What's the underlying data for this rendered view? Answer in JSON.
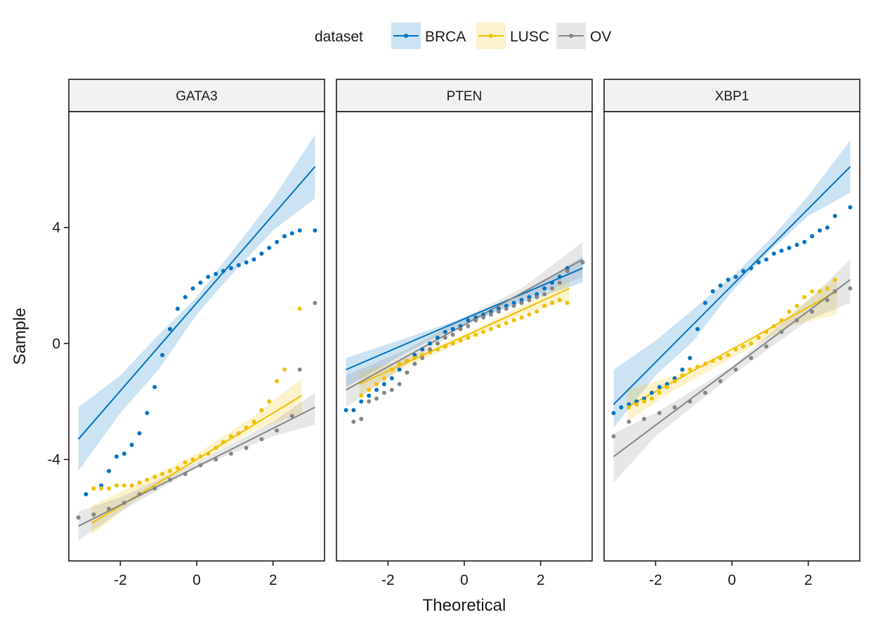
{
  "chart_data": {
    "type": "scatter",
    "xlabel": "Theoretical",
    "ylabel": "Sample",
    "xlim": [
      -3.35,
      3.35
    ],
    "ylim": [
      -7.5,
      8.0
    ],
    "x_ticks": [
      -2,
      0,
      2
    ],
    "x_tick_labels": [
      "-2",
      "0",
      "2"
    ],
    "y_ticks": [
      -4,
      0,
      4
    ],
    "y_tick_labels": [
      "-4",
      "0",
      "4"
    ],
    "grid": false,
    "legend": {
      "title": "dataset",
      "placement": "top",
      "entries": [
        "BRCA",
        "LUSC",
        "OV"
      ]
    },
    "series_colors": {
      "BRCA": "#0073C2",
      "LUSC": "#EFC000",
      "OV": "#868686"
    },
    "panels": [
      {
        "name": "GATA3",
        "series": [
          {
            "dataset": "BRCA",
            "quantile_x": [
              -3.1,
              -2.9,
              -2.7,
              -2.5,
              -2.3,
              -2.1,
              -1.9,
              -1.7,
              -1.5,
              -1.3,
              -1.1,
              -0.9,
              -0.7,
              -0.5,
              -0.3,
              -0.1,
              0.1,
              0.3,
              0.5,
              0.7,
              0.9,
              1.1,
              1.3,
              1.5,
              1.7,
              1.9,
              2.1,
              2.3,
              2.5,
              2.7,
              3.1
            ],
            "quantile_y": [
              -6.0,
              -5.2,
              -5.0,
              -4.9,
              -4.4,
              -3.9,
              -3.8,
              -3.5,
              -3.1,
              -2.4,
              -1.5,
              -0.4,
              0.5,
              1.2,
              1.6,
              1.9,
              2.1,
              2.3,
              2.4,
              2.5,
              2.6,
              2.7,
              2.8,
              2.9,
              3.1,
              3.3,
              3.5,
              3.7,
              3.8,
              3.9,
              3.9
            ],
            "fit_line": {
              "x": [
                -3.1,
                3.1
              ],
              "y": [
                -3.3,
                6.1
              ]
            },
            "band_x": [
              -3.1,
              -2.0,
              -1.0,
              0.0,
              1.0,
              2.0,
              3.1
            ],
            "band_lower": [
              -4.4,
              -2.4,
              -0.9,
              1.0,
              2.5,
              3.9,
              5.0
            ],
            "band_upper": [
              -2.2,
              -1.1,
              0.3,
              1.6,
              3.3,
              5.0,
              7.2
            ]
          },
          {
            "dataset": "LUSC",
            "quantile_x": [
              -3.1,
              -2.7,
              -2.5,
              -2.3,
              -2.1,
              -1.9,
              -1.7,
              -1.5,
              -1.3,
              -1.1,
              -0.9,
              -0.7,
              -0.5,
              -0.3,
              -0.1,
              0.1,
              0.3,
              0.5,
              0.7,
              0.9,
              1.1,
              1.3,
              1.5,
              1.7,
              1.9,
              2.1,
              2.3,
              2.7
            ],
            "quantile_y": [
              -6.0,
              -5.0,
              -5.0,
              -5.0,
              -4.9,
              -4.9,
              -4.9,
              -4.8,
              -4.7,
              -4.6,
              -4.5,
              -4.4,
              -4.3,
              -4.1,
              -4.0,
              -3.9,
              -3.8,
              -3.6,
              -3.4,
              -3.2,
              -3.1,
              -2.9,
              -2.7,
              -2.3,
              -2.0,
              -1.3,
              -0.9,
              1.2
            ],
            "fit_line": {
              "x": [
                -2.75,
                2.75
              ],
              "y": [
                -6.2,
                -1.8
              ]
            },
            "band_x": [
              -2.75,
              -1.5,
              0.0,
              1.5,
              2.75
            ],
            "band_lower": [
              -6.6,
              -5.3,
              -4.1,
              -3.0,
              -2.4
            ],
            "band_upper": [
              -5.6,
              -4.8,
              -3.8,
              -2.5,
              -1.2
            ]
          },
          {
            "dataset": "OV",
            "quantile_x": [
              -3.1,
              -2.7,
              -2.3,
              -1.9,
              -1.5,
              -1.1,
              -0.7,
              -0.3,
              0.1,
              0.5,
              0.9,
              1.3,
              1.7,
              2.1,
              2.5,
              2.7,
              3.1
            ],
            "quantile_y": [
              -6.0,
              -5.9,
              -5.7,
              -5.5,
              -5.2,
              -5.0,
              -4.7,
              -4.5,
              -4.2,
              -4.0,
              -3.8,
              -3.6,
              -3.3,
              -3.0,
              -2.5,
              -0.9,
              1.4
            ],
            "fit_line": {
              "x": [
                -3.1,
                3.1
              ],
              "y": [
                -6.3,
                -2.2
              ]
            },
            "band_x": [
              -3.1,
              -2.0,
              0.0,
              2.0,
              3.1
            ],
            "band_lower": [
              -6.8,
              -5.8,
              -4.3,
              -3.2,
              -2.8
            ],
            "band_upper": [
              -5.8,
              -5.3,
              -4.1,
              -2.7,
              -1.7
            ]
          }
        ]
      },
      {
        "name": "PTEN",
        "series": [
          {
            "dataset": "BRCA",
            "quantile_x": [
              -3.1,
              -2.9,
              -2.7,
              -2.5,
              -2.3,
              -2.1,
              -1.9,
              -1.7,
              -1.5,
              -1.3,
              -1.1,
              -0.9,
              -0.7,
              -0.5,
              -0.3,
              -0.1,
              0.1,
              0.3,
              0.5,
              0.7,
              0.9,
              1.1,
              1.3,
              1.5,
              1.7,
              1.9,
              2.1,
              2.3,
              2.5,
              2.7,
              3.1
            ],
            "quantile_y": [
              -2.3,
              -2.3,
              -2.0,
              -1.8,
              -1.6,
              -1.4,
              -1.2,
              -0.9,
              -0.6,
              -0.4,
              -0.2,
              0.0,
              0.2,
              0.4,
              0.5,
              0.6,
              0.8,
              0.9,
              1.0,
              1.1,
              1.2,
              1.3,
              1.4,
              1.5,
              1.6,
              1.7,
              1.9,
              2.1,
              2.3,
              2.6,
              2.8
            ],
            "fit_line": {
              "x": [
                -3.1,
                3.1
              ],
              "y": [
                -0.9,
                2.6
              ]
            },
            "band_x": [
              -3.1,
              -1.5,
              0.0,
              1.5,
              3.1
            ],
            "band_lower": [
              -1.5,
              -0.3,
              0.7,
              1.4,
              2.1
            ],
            "band_upper": [
              -0.5,
              0.2,
              0.9,
              1.7,
              3.0
            ]
          },
          {
            "dataset": "LUSC",
            "quantile_x": [
              -2.7,
              -2.5,
              -2.3,
              -2.1,
              -1.9,
              -1.7,
              -1.5,
              -1.3,
              -1.1,
              -0.9,
              -0.7,
              -0.5,
              -0.3,
              -0.1,
              0.1,
              0.3,
              0.5,
              0.7,
              0.9,
              1.1,
              1.3,
              1.5,
              1.7,
              1.9,
              2.1,
              2.3,
              2.5,
              2.7
            ],
            "quantile_y": [
              -1.8,
              -1.6,
              -1.4,
              -1.2,
              -0.9,
              -0.7,
              -0.6,
              -0.5,
              -0.4,
              -0.3,
              -0.2,
              -0.1,
              0.0,
              0.1,
              0.2,
              0.3,
              0.4,
              0.5,
              0.6,
              0.7,
              0.8,
              0.9,
              1.0,
              1.1,
              1.3,
              1.4,
              1.5,
              1.4
            ],
            "fit_line": {
              "x": [
                -2.75,
                2.75
              ],
              "y": [
                -1.4,
                1.9
              ]
            },
            "band_x": [
              -2.75,
              -1.5,
              0.0,
              1.5,
              2.75
            ],
            "band_lower": [
              -1.8,
              -0.8,
              0.1,
              1.0,
              1.5
            ],
            "band_upper": [
              -1.0,
              -0.5,
              0.3,
              1.3,
              2.2
            ]
          },
          {
            "dataset": "OV",
            "quantile_x": [
              -2.9,
              -2.7,
              -2.5,
              -2.3,
              -2.1,
              -1.9,
              -1.7,
              -1.5,
              -1.3,
              -1.1,
              -0.9,
              -0.7,
              -0.5,
              -0.3,
              -0.1,
              0.1,
              0.3,
              0.5,
              0.7,
              0.9,
              1.1,
              1.3,
              1.5,
              1.7,
              1.9,
              2.1,
              2.3,
              2.5,
              2.7,
              3.1
            ],
            "quantile_y": [
              -2.7,
              -2.6,
              -2.0,
              -1.9,
              -1.7,
              -1.6,
              -1.4,
              -1.0,
              -0.7,
              -0.5,
              -0.2,
              0.0,
              0.2,
              0.3,
              0.5,
              0.6,
              0.8,
              0.9,
              1.0,
              1.1,
              1.2,
              1.3,
              1.4,
              1.5,
              1.6,
              1.7,
              1.9,
              2.1,
              2.5,
              2.8
            ],
            "fit_line": {
              "x": [
                -3.1,
                3.1
              ],
              "y": [
                -1.6,
                2.9
              ]
            },
            "band_x": [
              -3.1,
              -1.5,
              0.0,
              1.5,
              3.1
            ],
            "band_lower": [
              -2.2,
              -0.7,
              0.6,
              1.5,
              2.3
            ],
            "band_upper": [
              -1.1,
              -0.2,
              0.9,
              1.9,
              3.5
            ]
          }
        ]
      },
      {
        "name": "XBP1",
        "series": [
          {
            "dataset": "BRCA",
            "quantile_x": [
              -3.1,
              -2.9,
              -2.7,
              -2.5,
              -2.3,
              -2.1,
              -1.9,
              -1.7,
              -1.5,
              -1.3,
              -1.1,
              -0.9,
              -0.7,
              -0.5,
              -0.3,
              -0.1,
              0.1,
              0.3,
              0.5,
              0.7,
              0.9,
              1.1,
              1.3,
              1.5,
              1.7,
              1.9,
              2.1,
              2.3,
              2.5,
              2.7,
              3.1
            ],
            "quantile_y": [
              -2.4,
              -2.2,
              -2.1,
              -2.0,
              -1.9,
              -1.7,
              -1.5,
              -1.4,
              -1.2,
              -0.9,
              -0.5,
              0.5,
              1.4,
              1.8,
              2.0,
              2.2,
              2.3,
              2.5,
              2.6,
              2.8,
              2.9,
              3.1,
              3.2,
              3.3,
              3.4,
              3.5,
              3.7,
              3.9,
              4.0,
              4.4,
              4.7
            ],
            "fit_line": {
              "x": [
                -3.1,
                3.1
              ],
              "y": [
                -2.1,
                6.1
              ]
            },
            "band_x": [
              -3.1,
              -2.0,
              -1.0,
              0.0,
              1.0,
              2.0,
              3.1
            ],
            "band_lower": [
              -2.9,
              -1.1,
              0.1,
              1.8,
              3.2,
              4.4,
              5.2
            ],
            "band_upper": [
              -0.9,
              0.1,
              1.2,
              2.3,
              3.6,
              5.1,
              7.0
            ]
          },
          {
            "dataset": "LUSC",
            "quantile_x": [
              -2.7,
              -2.5,
              -2.3,
              -2.1,
              -1.9,
              -1.7,
              -1.5,
              -1.3,
              -1.1,
              -0.9,
              -0.7,
              -0.5,
              -0.3,
              -0.1,
              0.1,
              0.3,
              0.5,
              0.7,
              0.9,
              1.1,
              1.3,
              1.5,
              1.7,
              1.9,
              2.1,
              2.3,
              2.5,
              2.7
            ],
            "quantile_y": [
              -2.2,
              -2.1,
              -2.0,
              -1.9,
              -1.7,
              -1.5,
              -1.3,
              -1.1,
              -0.9,
              -0.8,
              -0.7,
              -0.6,
              -0.5,
              -0.4,
              -0.2,
              -0.1,
              0.0,
              0.2,
              0.4,
              0.6,
              0.8,
              1.1,
              1.3,
              1.6,
              1.8,
              1.8,
              1.9,
              2.2
            ],
            "fit_line": {
              "x": [
                -2.75,
                2.75
              ],
              "y": [
                -2.2,
                1.8
              ]
            },
            "band_x": [
              -2.75,
              -1.5,
              0.0,
              1.5,
              2.75
            ],
            "band_lower": [
              -2.7,
              -1.6,
              -0.5,
              0.6,
              1.0
            ],
            "band_upper": [
              -1.6,
              -1.1,
              -0.3,
              1.0,
              2.3
            ]
          },
          {
            "dataset": "OV",
            "quantile_x": [
              -3.1,
              -2.7,
              -2.3,
              -1.9,
              -1.5,
              -1.1,
              -0.7,
              -0.3,
              0.1,
              0.5,
              0.9,
              1.3,
              1.7,
              2.1,
              2.5,
              2.7,
              3.1
            ],
            "quantile_y": [
              -3.2,
              -2.7,
              -2.6,
              -2.4,
              -2.2,
              -2.0,
              -1.7,
              -1.3,
              -0.9,
              -0.5,
              -0.1,
              0.4,
              0.8,
              1.1,
              1.5,
              1.8,
              1.9
            ],
            "fit_line": {
              "x": [
                -3.1,
                3.1
              ],
              "y": [
                -3.9,
                2.2
              ]
            },
            "band_x": [
              -3.1,
              -2.0,
              0.0,
              2.0,
              3.1
            ],
            "band_lower": [
              -4.8,
              -3.2,
              -1.1,
              0.8,
              1.4
            ],
            "band_upper": [
              -3.1,
              -2.4,
              -0.8,
              1.5,
              2.9
            ]
          }
        ]
      }
    ]
  }
}
